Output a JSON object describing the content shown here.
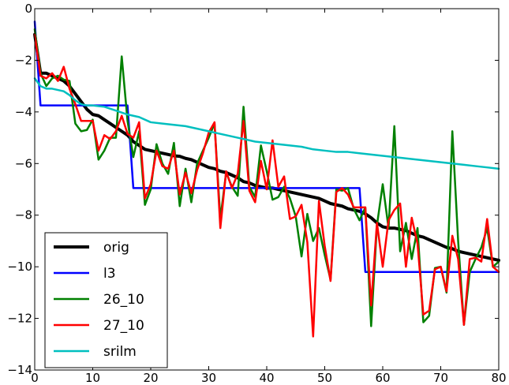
{
  "chart_data": {
    "type": "line",
    "title": "",
    "xlabel": "",
    "ylabel": "",
    "xlim": [
      0,
      80
    ],
    "ylim": [
      -14,
      0
    ],
    "x_ticks": [
      0,
      10,
      20,
      30,
      40,
      50,
      60,
      70,
      80
    ],
    "y_ticks": [
      0,
      -2,
      -4,
      -6,
      -8,
      -10,
      -12,
      -14
    ],
    "grid": false,
    "legend_position": "lower-left",
    "series": [
      {
        "name": "orig",
        "color": "#000000",
        "x": [
          0,
          1,
          2,
          3,
          4,
          5,
          6,
          7,
          8,
          9,
          10,
          11,
          12,
          13,
          14,
          15,
          16,
          17,
          18,
          19,
          20,
          21,
          22,
          23,
          24,
          25,
          26,
          27,
          28,
          29,
          30,
          31,
          32,
          33,
          34,
          35,
          36,
          37,
          38,
          39,
          40,
          41,
          42,
          43,
          44,
          45,
          46,
          47,
          48,
          49,
          50,
          51,
          52,
          53,
          54,
          55,
          56,
          57,
          58,
          59,
          60,
          61,
          62,
          63,
          64,
          65,
          66,
          67,
          68,
          69,
          70,
          71,
          72,
          73,
          74,
          75,
          76,
          77,
          78,
          79,
          80
        ],
        "values": [
          -1.0,
          -2.5,
          -2.5,
          -2.6,
          -2.7,
          -2.8,
          -3.0,
          -3.3,
          -3.6,
          -3.9,
          -4.1,
          -4.15,
          -4.3,
          -4.45,
          -4.6,
          -4.75,
          -4.9,
          -5.15,
          -5.3,
          -5.45,
          -5.5,
          -5.55,
          -5.6,
          -5.65,
          -5.7,
          -5.72,
          -5.8,
          -5.85,
          -5.95,
          -6.05,
          -6.15,
          -6.2,
          -6.3,
          -6.35,
          -6.45,
          -6.55,
          -6.7,
          -6.75,
          -6.85,
          -6.9,
          -6.95,
          -6.95,
          -7.0,
          -7.05,
          -7.1,
          -7.15,
          -7.2,
          -7.25,
          -7.3,
          -7.35,
          -7.45,
          -7.55,
          -7.6,
          -7.65,
          -7.75,
          -7.8,
          -7.85,
          -7.95,
          -8.1,
          -8.3,
          -8.45,
          -8.5,
          -8.5,
          -8.55,
          -8.6,
          -8.7,
          -8.8,
          -8.85,
          -8.95,
          -9.05,
          -9.15,
          -9.25,
          -9.3,
          -9.4,
          -9.45,
          -9.5,
          -9.55,
          -9.6,
          -9.65,
          -9.7,
          -9.75
        ]
      },
      {
        "name": "l3",
        "color": "#0000ff",
        "x": [
          0,
          1,
          16,
          17,
          56,
          57,
          80
        ],
        "values": [
          -0.5,
          -3.75,
          -3.75,
          -6.95,
          -6.95,
          -10.2,
          -10.2
        ]
      },
      {
        "name": "26_10",
        "color": "#008000",
        "x": [
          0,
          1,
          2,
          3,
          4,
          5,
          6,
          7,
          8,
          9,
          10,
          11,
          12,
          13,
          14,
          15,
          16,
          17,
          18,
          19,
          20,
          21,
          22,
          23,
          24,
          25,
          26,
          27,
          28,
          29,
          30,
          31,
          32,
          33,
          34,
          35,
          36,
          37,
          38,
          39,
          40,
          41,
          42,
          43,
          44,
          45,
          46,
          47,
          48,
          49,
          50,
          51,
          52,
          53,
          54,
          55,
          56,
          57,
          58,
          59,
          60,
          61,
          62,
          63,
          64,
          65,
          66,
          67,
          68,
          69,
          70,
          71,
          72,
          73,
          74,
          75,
          76,
          77,
          78,
          79,
          80
        ],
        "values": [
          -0.8,
          -2.5,
          -3.0,
          -2.7,
          -2.6,
          -2.75,
          -2.8,
          -4.45,
          -4.75,
          -4.7,
          -4.3,
          -5.85,
          -5.5,
          -5.0,
          -5.0,
          -1.85,
          -4.35,
          -5.75,
          -4.75,
          -7.6,
          -7.0,
          -5.25,
          -6.0,
          -6.4,
          -5.2,
          -7.65,
          -6.2,
          -7.5,
          -6.0,
          -5.5,
          -5.0,
          -4.45,
          -8.15,
          -6.35,
          -6.9,
          -7.25,
          -3.8,
          -6.9,
          -7.3,
          -5.3,
          -6.3,
          -7.4,
          -7.3,
          -6.9,
          -7.35,
          -8.05,
          -9.6,
          -7.95,
          -9.0,
          -8.5,
          -9.55,
          -10.5,
          -7.0,
          -7.05,
          -6.95,
          -7.75,
          -8.2,
          -7.7,
          -12.3,
          -8.4,
          -6.8,
          -8.5,
          -4.55,
          -9.4,
          -8.3,
          -9.7,
          -8.5,
          -12.15,
          -11.9,
          -10.05,
          -10.0,
          -11.0,
          -4.75,
          -9.0,
          -12.25,
          -10.2,
          -9.7,
          -9.25,
          -8.5,
          -10.0,
          -9.8
        ]
      },
      {
        "name": "27_10",
        "color": "#ff0000",
        "x": [
          0,
          1,
          2,
          3,
          4,
          5,
          6,
          7,
          8,
          9,
          10,
          11,
          12,
          13,
          14,
          15,
          16,
          17,
          18,
          19,
          20,
          21,
          22,
          23,
          24,
          25,
          26,
          27,
          28,
          29,
          30,
          31,
          32,
          33,
          34,
          35,
          36,
          37,
          38,
          39,
          40,
          41,
          42,
          43,
          44,
          45,
          46,
          47,
          48,
          49,
          50,
          51,
          52,
          53,
          54,
          55,
          56,
          57,
          58,
          59,
          60,
          61,
          62,
          63,
          64,
          65,
          66,
          67,
          68,
          69,
          70,
          71,
          72,
          73,
          74,
          75,
          76,
          77,
          78,
          79,
          80
        ],
        "values": [
          -1.0,
          -2.6,
          -2.7,
          -2.5,
          -2.8,
          -2.25,
          -3.1,
          -3.7,
          -4.35,
          -4.35,
          -4.35,
          -5.5,
          -4.9,
          -5.05,
          -4.75,
          -4.15,
          -4.85,
          -5.0,
          -4.4,
          -7.35,
          -6.8,
          -5.5,
          -6.1,
          -6.2,
          -5.5,
          -7.2,
          -6.35,
          -7.15,
          -6.25,
          -5.6,
          -4.8,
          -4.4,
          -8.5,
          -6.3,
          -6.95,
          -6.4,
          -4.35,
          -7.05,
          -7.5,
          -5.9,
          -7.0,
          -5.1,
          -6.9,
          -6.5,
          -8.15,
          -8.05,
          -7.6,
          -9.05,
          -12.7,
          -7.45,
          -9.2,
          -10.55,
          -7.1,
          -6.95,
          -7.2,
          -7.7,
          -7.7,
          -7.7,
          -11.5,
          -8.3,
          -10.0,
          -8.2,
          -7.8,
          -7.55,
          -10.0,
          -8.1,
          -9.1,
          -11.85,
          -11.7,
          -10.1,
          -10.0,
          -10.95,
          -8.8,
          -9.7,
          -12.25,
          -9.7,
          -9.65,
          -9.8,
          -8.15,
          -10.0,
          -10.2
        ]
      },
      {
        "name": "srilm",
        "color": "#00bfbf",
        "x": [
          0,
          1,
          2,
          3,
          4,
          5,
          6,
          7,
          8,
          9,
          10,
          12,
          14,
          16,
          18,
          20,
          22,
          24,
          26,
          28,
          30,
          32,
          34,
          36,
          38,
          40,
          42,
          44,
          46,
          48,
          50,
          52,
          54,
          56,
          58,
          60,
          62,
          64,
          66,
          68,
          70,
          72,
          74,
          76,
          78,
          80
        ],
        "values": [
          -2.7,
          -3.0,
          -3.1,
          -3.1,
          -3.15,
          -3.2,
          -3.35,
          -3.55,
          -3.7,
          -3.75,
          -3.75,
          -3.8,
          -3.95,
          -4.1,
          -4.2,
          -4.4,
          -4.45,
          -4.5,
          -4.55,
          -4.65,
          -4.75,
          -4.85,
          -4.95,
          -5.05,
          -5.15,
          -5.2,
          -5.25,
          -5.3,
          -5.35,
          -5.45,
          -5.5,
          -5.55,
          -5.55,
          -5.6,
          -5.65,
          -5.7,
          -5.75,
          -5.8,
          -5.85,
          -5.9,
          -5.95,
          -6.0,
          -6.05,
          -6.1,
          -6.15,
          -6.2
        ]
      }
    ]
  }
}
